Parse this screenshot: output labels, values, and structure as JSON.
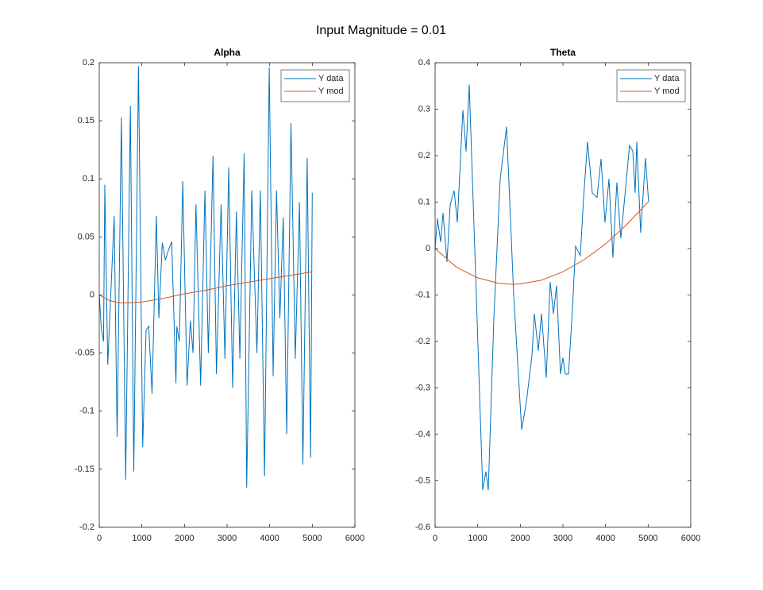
{
  "title": "Input Magnitude = 0.01",
  "chart_data": [
    {
      "type": "line",
      "title": "Alpha",
      "xlim": [
        0,
        6000
      ],
      "xticks": [
        0,
        1000,
        2000,
        3000,
        4000,
        5000,
        6000
      ],
      "ylim": [
        -0.2,
        0.2
      ],
      "yticks": [
        -0.2,
        -0.15,
        -0.1,
        -0.05,
        0,
        0.05,
        0.1,
        0.15,
        0.2
      ],
      "legend": "northeast",
      "series": [
        {
          "name": "Y data",
          "color": "#0072bd",
          "x": [
            0,
            50,
            100,
            130,
            200,
            350,
            420,
            520,
            620,
            730,
            810,
            920,
            1020,
            1100,
            1160,
            1240,
            1340,
            1400,
            1480,
            1550,
            1620,
            1700,
            1800,
            1820,
            1880,
            1960,
            2060,
            2140,
            2200,
            2270,
            2380,
            2480,
            2560,
            2670,
            2750,
            2860,
            2950,
            3040,
            3130,
            3220,
            3300,
            3400,
            3460,
            3580,
            3700,
            3780,
            3880,
            3990,
            4080,
            4160,
            4240,
            4320,
            4400,
            4500,
            4600,
            4700,
            4780,
            4880,
            4960,
            5000
          ],
          "values": [
            0,
            -0.03,
            -0.04,
            0.095,
            -0.06,
            0.068,
            -0.122,
            0.153,
            -0.159,
            0.163,
            -0.152,
            0.197,
            -0.131,
            -0.03,
            -0.027,
            -0.085,
            0.068,
            -0.02,
            0.045,
            0.03,
            0.038,
            0.046,
            -0.076,
            -0.027,
            -0.04,
            0.098,
            -0.078,
            -0.022,
            -0.05,
            0.078,
            -0.078,
            0.09,
            -0.05,
            0.12,
            -0.068,
            0.078,
            -0.055,
            0.11,
            -0.08,
            0.072,
            -0.055,
            0.122,
            -0.166,
            0.09,
            -0.05,
            0.09,
            -0.156,
            0.196,
            -0.07,
            0.09,
            -0.02,
            0.067,
            -0.12,
            0.148,
            -0.055,
            0.08,
            -0.146,
            0.118,
            -0.14,
            0.088
          ]
        },
        {
          "name": "Y mod",
          "color": "#d95319",
          "x": [
            0,
            250,
            500,
            750,
            1000,
            1500,
            2000,
            2500,
            3000,
            3500,
            4000,
            4500,
            5000
          ],
          "values": [
            0,
            -0.005,
            -0.0068,
            -0.0068,
            -0.006,
            -0.003,
            0.001,
            0.004,
            0.008,
            0.011,
            0.014,
            0.017,
            0.02
          ]
        }
      ]
    },
    {
      "type": "line",
      "title": "Theta",
      "xlim": [
        0,
        6000
      ],
      "xticks": [
        0,
        1000,
        2000,
        3000,
        4000,
        5000,
        6000
      ],
      "ylim": [
        -0.6,
        0.4
      ],
      "yticks": [
        -0.6,
        -0.5,
        -0.4,
        -0.3,
        -0.2,
        -0.1,
        0,
        0.1,
        0.2,
        0.3,
        0.4
      ],
      "legend": "northeast",
      "series": [
        {
          "name": "Y data",
          "color": "#0072bd",
          "x": [
            0,
            56,
            130,
            186,
            280,
            354,
            447,
            522,
            652,
            727,
            801,
            968,
            1118,
            1192,
            1248,
            1379,
            1528,
            1677,
            1844,
            2031,
            2142,
            2273,
            2329,
            2422,
            2496,
            2608,
            2701,
            2776,
            2850,
            2943,
            3000,
            3055,
            3130,
            3223,
            3297,
            3409,
            3484,
            3577,
            3689,
            3800,
            3894,
            3987,
            4080,
            4173,
            4266,
            4359,
            4452,
            4564,
            4639,
            4695,
            4732,
            4825,
            4937,
            5011
          ],
          "values": [
            0,
            0.065,
            0.014,
            0.077,
            -0.029,
            0.094,
            0.125,
            0.056,
            0.298,
            0.209,
            0.353,
            -0.1,
            -0.52,
            -0.48,
            -0.52,
            -0.15,
            0.15,
            0.262,
            -0.1,
            -0.39,
            -0.33,
            -0.23,
            -0.14,
            -0.22,
            -0.14,
            -0.278,
            -0.072,
            -0.14,
            -0.08,
            -0.27,
            -0.235,
            -0.27,
            -0.27,
            -0.13,
            0.005,
            -0.015,
            0.108,
            0.23,
            0.12,
            0.11,
            0.193,
            0.056,
            0.15,
            -0.02,
            0.142,
            0.022,
            0.111,
            0.222,
            0.21,
            0.12,
            0.23,
            0.034,
            0.195,
            0.1
          ]
        },
        {
          "name": "Y mod",
          "color": "#d95319",
          "x": [
            0,
            500,
            1000,
            1500,
            1800,
            2000,
            2500,
            3000,
            3500,
            4000,
            4500,
            5000
          ],
          "values": [
            0,
            -0.04,
            -0.063,
            -0.075,
            -0.077,
            -0.076,
            -0.068,
            -0.05,
            -0.024,
            0.01,
            0.052,
            0.1
          ]
        }
      ]
    }
  ]
}
